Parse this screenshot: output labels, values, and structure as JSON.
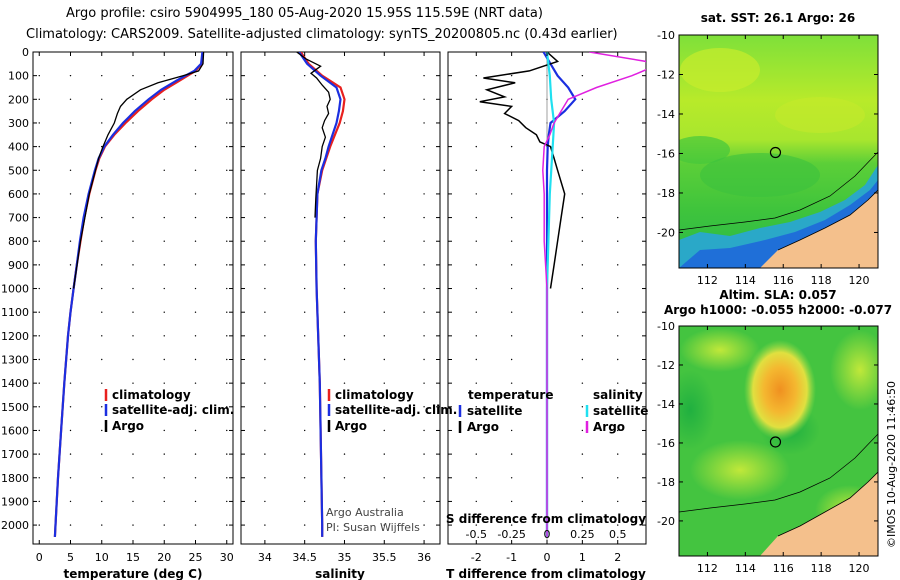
{
  "header": {
    "line1": "Argo profile: csiro 5904995_180 05-Aug-2020 15.95S 115.59E (NRT data)",
    "line2": "Climatology: CARS2009. Satellite-adjusted climatology: synTS_20200805.nc (0.43d earlier)"
  },
  "colors": {
    "climatology": "#e8201e",
    "satellite": "#1b2fe0",
    "argo": "#000000",
    "argo_salinity": "#e020e0",
    "satellite_salinity": "#20e0f0",
    "land": "#f4c08c"
  },
  "depth_axis": {
    "ticks": [
      0,
      100,
      200,
      300,
      400,
      500,
      600,
      700,
      800,
      900,
      1000,
      1100,
      1200,
      1300,
      1400,
      1500,
      1600,
      1700,
      1800,
      1900,
      2000
    ],
    "range": [
      0,
      2080
    ]
  },
  "chart_data": [
    {
      "type": "line",
      "id": "temperature",
      "xlabel": "temperature (deg C)",
      "ylabel": "depth",
      "xlim": [
        -1,
        31
      ],
      "ylim": [
        2080,
        0
      ],
      "xticks": [
        0,
        5,
        10,
        15,
        20,
        25,
        30
      ],
      "xticklabels": [
        "0",
        "5",
        "10",
        "15",
        "20",
        "25",
        "30"
      ],
      "legend": {
        "items": [
          "climatology",
          "satellite-adj. clim.",
          "Argo"
        ]
      },
      "series": [
        {
          "name": "climatology",
          "color": "#e8201e",
          "depth": [
            0,
            50,
            80,
            120,
            160,
            200,
            250,
            300,
            350,
            400,
            450,
            500,
            600,
            700,
            800,
            900,
            1000,
            1100,
            1200,
            1400,
            1600,
            1800,
            2000,
            2050
          ],
          "values": [
            26.2,
            26.0,
            25.0,
            22.5,
            20.0,
            18.0,
            15.8,
            13.8,
            12.0,
            10.5,
            9.6,
            9.0,
            8.0,
            7.2,
            6.6,
            6.0,
            5.5,
            5.0,
            4.6,
            4.0,
            3.5,
            3.0,
            2.6,
            2.5
          ]
        },
        {
          "name": "satellite-adj. clim.",
          "color": "#1b2fe0",
          "depth": [
            0,
            50,
            80,
            120,
            160,
            200,
            250,
            300,
            350,
            400,
            450,
            500,
            600,
            700,
            800,
            900,
            1000,
            1100,
            1200,
            1400,
            1600,
            1800,
            2000,
            2050
          ],
          "values": [
            26.1,
            25.9,
            24.8,
            22.0,
            19.5,
            17.5,
            15.3,
            13.4,
            11.8,
            10.4,
            9.5,
            8.9,
            7.9,
            7.1,
            6.5,
            6.0,
            5.5,
            5.0,
            4.6,
            4.0,
            3.5,
            3.0,
            2.6,
            2.5
          ]
        },
        {
          "name": "Argo",
          "color": "#000000",
          "depth": [
            0,
            50,
            80,
            100,
            130,
            160,
            200,
            230,
            260,
            300,
            350,
            400,
            450,
            500,
            600,
            800,
            1000
          ],
          "values": [
            26.3,
            26.2,
            25.5,
            23.0,
            19.0,
            16.2,
            14.0,
            13.0,
            12.5,
            12.0,
            11.0,
            10.2,
            9.5,
            9.0,
            8.0,
            6.6,
            5.5
          ]
        }
      ]
    },
    {
      "type": "line",
      "id": "salinity",
      "xlabel": "salinity",
      "ylabel": "depth",
      "xlim": [
        33.7,
        36.2
      ],
      "ylim": [
        2080,
        0
      ],
      "xticks": [
        34,
        34.5,
        35,
        35.5,
        36
      ],
      "xticklabels": [
        "34",
        "34.5",
        "35",
        "35.5",
        "36"
      ],
      "legend": {
        "items": [
          "climatology",
          "satellite-adj. clim.",
          "Argo"
        ]
      },
      "annotation": [
        "Argo Australia",
        "PI: Susan Wijffels"
      ],
      "series": [
        {
          "name": "climatology",
          "color": "#e8201e",
          "depth": [
            0,
            50,
            100,
            150,
            200,
            250,
            300,
            350,
            400,
            450,
            500,
            600,
            800,
            1000,
            1200,
            1400,
            1600,
            1800,
            2000,
            2050
          ],
          "values": [
            34.45,
            34.55,
            34.72,
            34.95,
            35.0,
            34.98,
            34.94,
            34.88,
            34.82,
            34.77,
            34.72,
            34.66,
            34.64,
            34.65,
            34.67,
            34.69,
            34.7,
            34.71,
            34.72,
            34.72
          ]
        },
        {
          "name": "satellite-adj. clim.",
          "color": "#1b2fe0",
          "depth": [
            0,
            50,
            100,
            150,
            200,
            250,
            300,
            350,
            400,
            450,
            500,
            600,
            800,
            1000,
            1200,
            1400,
            1600,
            1800,
            2000,
            2050
          ],
          "values": [
            34.43,
            34.53,
            34.7,
            34.9,
            34.95,
            34.93,
            34.9,
            34.85,
            34.8,
            34.76,
            34.71,
            34.66,
            34.64,
            34.65,
            34.67,
            34.69,
            34.7,
            34.71,
            34.72,
            34.72
          ]
        },
        {
          "name": "Argo",
          "color": "#000000",
          "depth": [
            0,
            30,
            60,
            90,
            110,
            140,
            170,
            200,
            230,
            260,
            290,
            320,
            360,
            400,
            450,
            500,
            560,
            620,
            700
          ],
          "values": [
            34.4,
            34.52,
            34.7,
            34.58,
            34.65,
            34.72,
            34.8,
            34.82,
            34.78,
            34.8,
            34.75,
            34.72,
            34.76,
            34.72,
            34.7,
            34.66,
            34.65,
            34.64,
            34.63
          ]
        }
      ]
    },
    {
      "type": "line",
      "id": "difference",
      "xlabel": "T difference from climatology",
      "ylabel": "depth",
      "secondary_xlabel": "S difference from climatology",
      "xlim": [
        -2.8,
        2.8
      ],
      "ylim": [
        2080,
        0
      ],
      "xticks": [
        -2,
        -1,
        0,
        1,
        2
      ],
      "xticklabels": [
        "-2",
        "-1",
        "0",
        "1",
        "2"
      ],
      "sticks": [
        -0.5,
        -0.25,
        0,
        0.25,
        0.5
      ],
      "sticklabels": [
        "-0.5",
        "-0.25",
        "0",
        "0.25",
        "0.5"
      ],
      "legend": {
        "temperature_title": "temperature",
        "salinity_title": "salinity",
        "items": [
          "satellite",
          "Argo",
          "satellite",
          "Argo"
        ]
      },
      "series": [
        {
          "name": "temperature satellite",
          "color": "#1b2fe0",
          "depth": [
            0,
            50,
            100,
            150,
            200,
            250,
            300,
            350,
            400,
            500,
            600,
            800,
            1000,
            1500,
            2000,
            2050
          ],
          "values": [
            -0.1,
            0.1,
            0.3,
            0.6,
            0.8,
            0.5,
            0.1,
            0.05,
            0.02,
            0.0,
            0.0,
            0.0,
            0.0,
            0.0,
            0.0,
            0.0
          ]
        },
        {
          "name": "temperature Argo",
          "color": "#000000",
          "depth": [
            0,
            40,
            80,
            110,
            130,
            160,
            190,
            210,
            230,
            260,
            290,
            320,
            350,
            380,
            400,
            450,
            500,
            600,
            700,
            800,
            900,
            1000
          ],
          "values": [
            0.0,
            0.3,
            -0.5,
            -1.8,
            -0.9,
            -1.7,
            -1.2,
            -1.9,
            -1.0,
            -1.2,
            -0.8,
            -0.6,
            -0.3,
            -0.2,
            0.1,
            0.2,
            0.3,
            0.5,
            0.4,
            0.3,
            0.2,
            0.1
          ]
        },
        {
          "name": "salinity satellite",
          "color": "#20e0f0",
          "depth": [
            0,
            100,
            200,
            300,
            400,
            600,
            800,
            1000,
            1500,
            2000,
            2050
          ],
          "values": [
            0.0,
            0.02,
            0.03,
            0.05,
            0.04,
            0.02,
            0.01,
            0.0,
            0.0,
            0.0,
            0.0
          ]
        },
        {
          "name": "salinity Argo",
          "color": "#e020e0",
          "depth": [
            0,
            50,
            100,
            150,
            200,
            250,
            300,
            350,
            400,
            500,
            600,
            800,
            1000,
            1500,
            2000,
            2050
          ],
          "values": [
            0.3,
            0.8,
            0.6,
            0.35,
            0.15,
            0.1,
            0.05,
            0.02,
            -0.02,
            -0.03,
            -0.02,
            -0.02,
            0.0,
            0.0,
            0.0,
            0.0
          ]
        }
      ]
    },
    {
      "type": "heatmap",
      "id": "sst-map",
      "title": "sat. SST: 26.1  Argo: 26",
      "xlim": [
        110.5,
        121
      ],
      "ylim": [
        -21.8,
        -10
      ],
      "xticks": [
        112,
        114,
        116,
        118,
        120
      ],
      "xticklabels": [
        "112",
        "114",
        "116",
        "118",
        "120"
      ],
      "yticks": [
        -10,
        -12,
        -14,
        -16,
        -18,
        -20
      ],
      "yticklabels": [
        "-10",
        "-12",
        "-14",
        "-16",
        "-18",
        "-20"
      ],
      "marker": {
        "lon": 115.59,
        "lat": -15.95
      }
    },
    {
      "type": "heatmap",
      "id": "sla-map",
      "title": "Altim. SLA: 0.057",
      "subtitle": "Argo h1000: -0.055  h2000: -0.077",
      "xlim": [
        110.5,
        121
      ],
      "ylim": [
        -21.8,
        -10
      ],
      "xticks": [
        112,
        114,
        116,
        118,
        120
      ],
      "xticklabels": [
        "112",
        "114",
        "116",
        "118",
        "120"
      ],
      "yticks": [
        -10,
        -12,
        -14,
        -16,
        -18,
        -20
      ],
      "yticklabels": [
        "-10",
        "-12",
        "-14",
        "-16",
        "-18",
        "-20"
      ],
      "marker": {
        "lon": 115.59,
        "lat": -15.95
      }
    }
  ],
  "watermark": "©IMOS 10-Aug-2020 11:46:50"
}
